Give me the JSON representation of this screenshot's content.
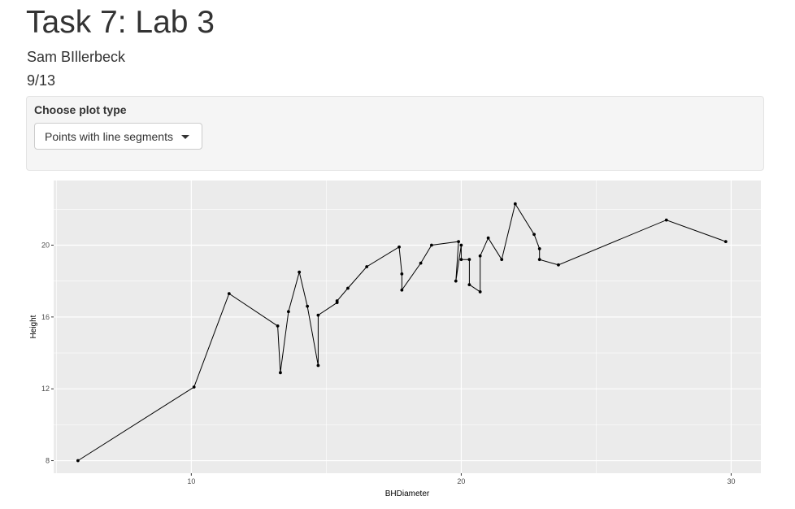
{
  "header": {
    "title": "Task 7: Lab 3",
    "author": "Sam BIllerbeck",
    "date": "9/13"
  },
  "controls": {
    "label": "Choose plot type",
    "selected": "Points with line segments",
    "dropdown_icon": "caret-down-icon"
  },
  "chart_data": {
    "type": "line",
    "xlabel": "BHDiameter",
    "ylabel": "Height",
    "xlim": [
      4.9,
      31.1
    ],
    "ylim": [
      7.3,
      23.6
    ],
    "x_ticks": [
      10,
      20,
      30
    ],
    "y_ticks": [
      8,
      12,
      16,
      20
    ],
    "grid": true,
    "points_shown": true,
    "line_color": "#000000",
    "panel_background": "#ebebeb",
    "series": [
      {
        "x": [
          5.8,
          10.1,
          11.4,
          13.2,
          13.3,
          13.6,
          14.0,
          14.3,
          14.7,
          14.7,
          15.4,
          15.4,
          15.8,
          16.5,
          17.7,
          17.8,
          17.8,
          18.5,
          18.9,
          19.9,
          19.8,
          20.0,
          20.0,
          20.3,
          20.3,
          20.7,
          20.7,
          21.0,
          21.5,
          22.0,
          22.7,
          22.9,
          22.9,
          23.6,
          27.6,
          29.8
        ],
        "y": [
          8.0,
          12.1,
          17.3,
          15.5,
          12.9,
          16.3,
          18.5,
          16.6,
          13.3,
          16.1,
          16.8,
          16.9,
          17.6,
          18.8,
          19.9,
          18.4,
          17.5,
          19.0,
          20.0,
          20.2,
          18.0,
          20.0,
          19.2,
          19.2,
          17.8,
          17.4,
          19.4,
          20.4,
          19.2,
          22.3,
          20.6,
          19.8,
          19.2,
          18.9,
          21.4,
          20.2
        ]
      }
    ]
  }
}
